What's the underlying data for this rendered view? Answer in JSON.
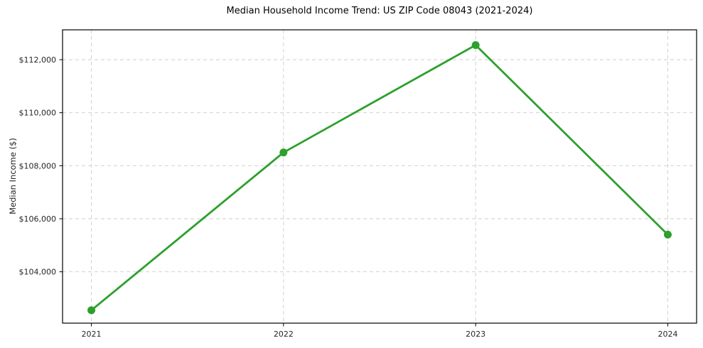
{
  "chart_data": {
    "type": "line",
    "title": "Median Household Income Trend: US ZIP Code 08043 (2021-2024)",
    "xlabel": "",
    "ylabel": "Median Income ($)",
    "categories": [
      "2021",
      "2022",
      "2023",
      "2024"
    ],
    "series": [
      {
        "name": "Median Household Income",
        "values": [
          102550,
          108500,
          112550,
          105400
        ],
        "color": "#2ca02c",
        "marker": "circle"
      }
    ],
    "y_ticks": [
      {
        "value": 104000,
        "label": "$104,000"
      },
      {
        "value": 106000,
        "label": "$106,000"
      },
      {
        "value": 108000,
        "label": "$108,000"
      },
      {
        "value": 110000,
        "label": "$110,000"
      },
      {
        "value": 112000,
        "label": "$112,000"
      }
    ],
    "ylim": [
      102063,
      113125
    ],
    "x_margin_frac": 0.15,
    "grid": "both",
    "grid_style": "dashed",
    "grid_color": "#cccccc",
    "legend": "none",
    "text_color": "#262626",
    "spine_color": "#000000",
    "background": "#ffffff"
  }
}
